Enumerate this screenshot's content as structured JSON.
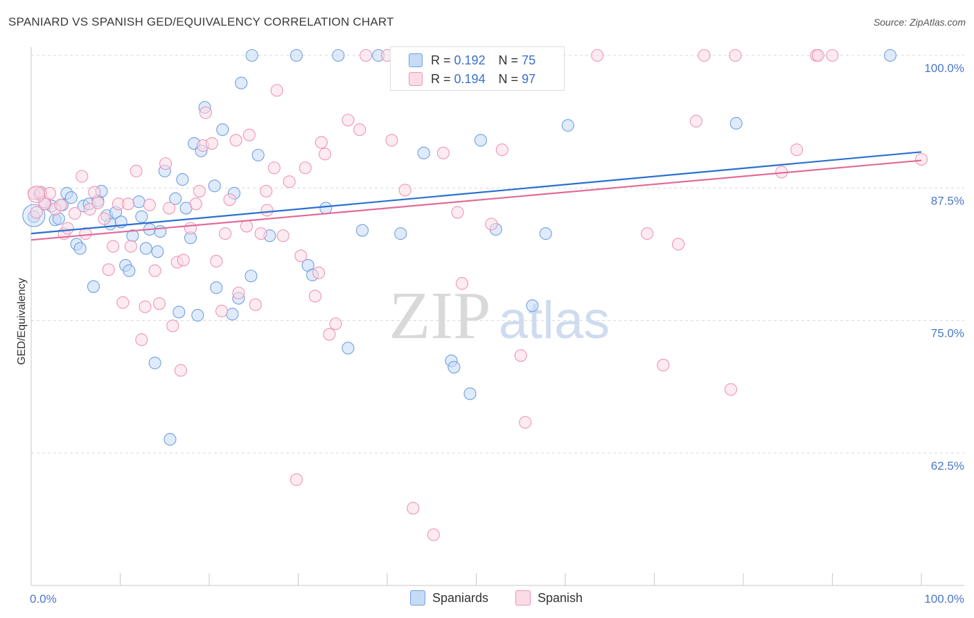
{
  "title": "SPANIARD VS SPANISH GED/EQUIVALENCY CORRELATION CHART",
  "source": "Source: ZipAtlas.com",
  "watermark": {
    "zip": "ZIP",
    "atlas": "atlas"
  },
  "legend": {
    "rows": [
      {
        "r_label": "R =",
        "r_value": "0.192",
        "n_label": "N =",
        "n_value": "75",
        "color": "#a9c8f0"
      },
      {
        "r_label": "R =",
        "r_value": "0.194",
        "n_label": "N =",
        "n_value": "97",
        "color": "#f6b5c9"
      }
    ]
  },
  "bottom_legend": {
    "spaniards": "Spaniards",
    "spanish": "Spanish"
  },
  "chart_data": {
    "type": "scatter",
    "title": "SPANIARD VS SPANISH GED/EQUIVALENCY CORRELATION CHART",
    "xlabel": "",
    "ylabel": "GED/Equivalency",
    "xlim": [
      0,
      100
    ],
    "ylim": [
      50.5,
      101.5
    ],
    "x_tick_labels": [
      "0.0%",
      "100.0%"
    ],
    "y_ticks": [
      62.5,
      75.0,
      87.5,
      100.0
    ],
    "y_tick_labels": [
      "62.5%",
      "75.0%",
      "87.5%",
      "100.0%"
    ],
    "grid": true,
    "legend_position": "top-center",
    "series": [
      {
        "name": "Spaniards",
        "stroke": "#6f9fe0",
        "fill": "#c5dbf6",
        "trend": {
          "x": [
            0,
            100
          ],
          "y": [
            83.2,
            90.9
          ],
          "color": "#2a6fcf"
        },
        "points": [
          [
            0.3,
            84.8
          ],
          [
            0.9,
            86.9
          ],
          [
            1.6,
            86.0
          ],
          [
            2.3,
            85.8
          ],
          [
            2.7,
            84.5
          ],
          [
            3.1,
            84.6
          ],
          [
            3.5,
            85.9
          ],
          [
            4.0,
            87.0
          ],
          [
            4.5,
            86.6
          ],
          [
            5.1,
            82.2
          ],
          [
            5.5,
            81.8
          ],
          [
            5.9,
            85.8
          ],
          [
            6.5,
            86.0
          ],
          [
            7.0,
            78.2
          ],
          [
            7.5,
            86.3
          ],
          [
            7.9,
            87.2
          ],
          [
            8.5,
            84.9
          ],
          [
            8.9,
            84.1
          ],
          [
            9.5,
            85.2
          ],
          [
            10.1,
            84.3
          ],
          [
            10.6,
            80.2
          ],
          [
            11.0,
            79.7
          ],
          [
            11.4,
            83.0
          ],
          [
            12.1,
            86.2
          ],
          [
            12.4,
            84.8
          ],
          [
            12.9,
            81.8
          ],
          [
            13.3,
            83.6
          ],
          [
            13.9,
            71.0
          ],
          [
            14.2,
            81.5
          ],
          [
            14.5,
            83.4
          ],
          [
            15.0,
            89.1
          ],
          [
            15.6,
            63.8
          ],
          [
            16.2,
            86.5
          ],
          [
            16.6,
            75.8
          ],
          [
            17.0,
            88.3
          ],
          [
            17.4,
            85.6
          ],
          [
            17.9,
            82.8
          ],
          [
            18.3,
            91.7
          ],
          [
            18.7,
            75.5
          ],
          [
            19.1,
            91.0
          ],
          [
            19.5,
            95.1
          ],
          [
            20.6,
            87.7
          ],
          [
            20.8,
            78.1
          ],
          [
            21.5,
            93.0
          ],
          [
            22.6,
            75.6
          ],
          [
            22.8,
            87.0
          ],
          [
            23.3,
            77.1
          ],
          [
            23.6,
            97.4
          ],
          [
            24.7,
            79.2
          ],
          [
            24.8,
            100.0
          ],
          [
            25.5,
            90.6
          ],
          [
            26.8,
            83.0
          ],
          [
            29.8,
            100.0
          ],
          [
            31.1,
            80.2
          ],
          [
            31.6,
            79.3
          ],
          [
            33.1,
            85.6
          ],
          [
            34.5,
            100.0
          ],
          [
            35.6,
            72.4
          ],
          [
            37.2,
            83.5
          ],
          [
            39.0,
            100.0
          ],
          [
            41.5,
            83.2
          ],
          [
            44.1,
            90.8
          ],
          [
            47.2,
            71.2
          ],
          [
            47.5,
            70.6
          ],
          [
            49.3,
            68.1
          ],
          [
            50.0,
            100.0
          ],
          [
            50.2,
            100.0
          ],
          [
            50.5,
            92.0
          ],
          [
            52.2,
            83.6
          ],
          [
            56.3,
            76.4
          ],
          [
            57.8,
            83.2
          ],
          [
            60.3,
            93.4
          ],
          [
            79.2,
            93.6
          ],
          [
            96.5,
            100.0
          ],
          [
            1.0,
            87.0
          ]
        ]
      },
      {
        "name": "Spanish",
        "stroke": "#ee95b3",
        "fill": "#fadbe6",
        "trend": {
          "x": [
            0,
            100
          ],
          "y": [
            82.6,
            90.1
          ],
          "color": "#e16b98"
        },
        "points": [
          [
            0.3,
            87.0
          ],
          [
            0.6,
            85.2
          ],
          [
            1.1,
            87.1
          ],
          [
            1.5,
            86.2
          ],
          [
            2.1,
            87.0
          ],
          [
            2.7,
            85.5
          ],
          [
            3.3,
            85.9
          ],
          [
            3.7,
            83.2
          ],
          [
            4.1,
            83.7
          ],
          [
            4.9,
            85.1
          ],
          [
            5.7,
            88.6
          ],
          [
            6.1,
            83.2
          ],
          [
            6.6,
            85.5
          ],
          [
            7.1,
            87.1
          ],
          [
            7.5,
            86.1
          ],
          [
            8.2,
            84.6
          ],
          [
            8.7,
            79.8
          ],
          [
            9.2,
            82.0
          ],
          [
            9.8,
            86.0
          ],
          [
            10.3,
            76.7
          ],
          [
            10.9,
            86.0
          ],
          [
            11.2,
            82.0
          ],
          [
            11.8,
            89.1
          ],
          [
            12.4,
            73.2
          ],
          [
            12.8,
            76.3
          ],
          [
            13.3,
            85.9
          ],
          [
            13.9,
            79.7
          ],
          [
            14.4,
            76.6
          ],
          [
            15.1,
            89.8
          ],
          [
            15.5,
            85.6
          ],
          [
            15.9,
            74.5
          ],
          [
            16.4,
            80.5
          ],
          [
            16.8,
            70.3
          ],
          [
            17.1,
            80.7
          ],
          [
            17.9,
            83.7
          ],
          [
            18.5,
            86.0
          ],
          [
            18.9,
            87.2
          ],
          [
            19.3,
            91.5
          ],
          [
            19.6,
            94.6
          ],
          [
            20.3,
            91.7
          ],
          [
            20.8,
            80.6
          ],
          [
            21.4,
            75.9
          ],
          [
            21.8,
            83.2
          ],
          [
            22.3,
            86.4
          ],
          [
            23.0,
            92.0
          ],
          [
            23.3,
            77.6
          ],
          [
            24.2,
            83.9
          ],
          [
            24.5,
            92.5
          ],
          [
            25.2,
            76.5
          ],
          [
            25.8,
            83.2
          ],
          [
            26.4,
            87.2
          ],
          [
            26.5,
            85.4
          ],
          [
            27.3,
            89.4
          ],
          [
            27.6,
            96.7
          ],
          [
            28.3,
            83.0
          ],
          [
            29.0,
            88.1
          ],
          [
            29.8,
            60.0
          ],
          [
            30.3,
            81.1
          ],
          [
            30.8,
            89.4
          ],
          [
            31.9,
            77.3
          ],
          [
            32.3,
            79.5
          ],
          [
            32.6,
            91.8
          ],
          [
            33.0,
            90.7
          ],
          [
            33.5,
            73.7
          ],
          [
            34.2,
            74.7
          ],
          [
            35.6,
            93.9
          ],
          [
            36.9,
            93.0
          ],
          [
            37.6,
            100.0
          ],
          [
            40.0,
            100.0
          ],
          [
            40.5,
            92.0
          ],
          [
            41.9,
            100.0
          ],
          [
            42.0,
            87.3
          ],
          [
            42.9,
            57.3
          ],
          [
            45.2,
            54.8
          ],
          [
            46.3,
            90.8
          ],
          [
            47.9,
            85.2
          ],
          [
            48.4,
            78.5
          ],
          [
            51.7,
            84.1
          ],
          [
            52.9,
            91.1
          ],
          [
            55.0,
            71.7
          ],
          [
            55.5,
            65.4
          ],
          [
            58.3,
            100.0
          ],
          [
            63.6,
            100.0
          ],
          [
            69.2,
            83.2
          ],
          [
            71.0,
            70.8
          ],
          [
            72.7,
            82.2
          ],
          [
            74.7,
            93.8
          ],
          [
            75.6,
            100.0
          ],
          [
            78.6,
            68.5
          ],
          [
            79.1,
            100.0
          ],
          [
            84.3,
            89.0
          ],
          [
            86.0,
            91.1
          ],
          [
            88.2,
            100.0
          ],
          [
            88.4,
            100.0
          ],
          [
            90.0,
            100.0
          ],
          [
            100.0,
            90.2
          ],
          [
            1.5,
            86.0
          ]
        ]
      }
    ]
  }
}
